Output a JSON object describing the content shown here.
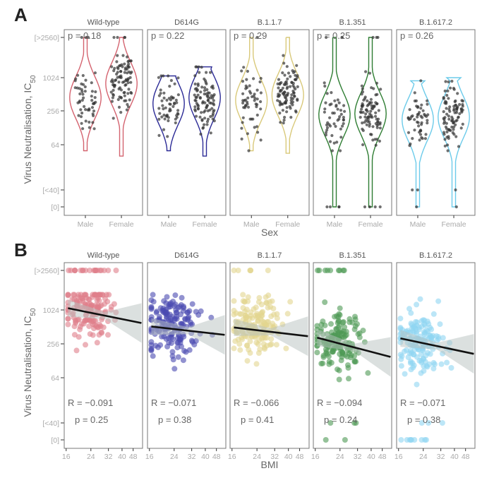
{
  "figure": {
    "panel_labels": [
      "A",
      "B"
    ]
  },
  "chart_data": [
    {
      "type": "violin",
      "panel": "A",
      "facets": [
        "Wild-type",
        "D614G",
        "B.1.1.7",
        "B.1.351",
        "B.1.617.2"
      ],
      "colors": [
        "#d4636f",
        "#2b2a96",
        "#d9c97a",
        "#2e7d32",
        "#6ccbea"
      ],
      "xlabel": "Sex",
      "ylabel": "Virus  Neutralisation, IC50",
      "ylabel_parts": {
        "main": "Virus  Neutralisation,  IC",
        "sub": "50"
      },
      "categories": [
        "Male",
        "Female"
      ],
      "yticks": [
        "[>2560]",
        "1024",
        "256",
        "64",
        "[<40]",
        "[0]"
      ],
      "ytick_values": [
        2560,
        1024,
        256,
        64,
        40,
        0
      ],
      "scale": "log2",
      "p_values": [
        "p = 0.18",
        "p = 0.22",
        "p = 0.29",
        "p = 0.25",
        "p = 0.26"
      ],
      "series": [
        {
          "name": "Wild-type",
          "median": {
            "Male": 450,
            "Female": 800
          },
          "range": {
            "Male": [
              50,
              2560
            ],
            "Female": [
              40,
              2560
            ]
          }
        },
        {
          "name": "D614G",
          "median": {
            "Male": 350,
            "Female": 450
          },
          "range": {
            "Male": [
              50,
              1100
            ],
            "Female": [
              40,
              1600
            ]
          }
        },
        {
          "name": "B.1.1.7",
          "median": {
            "Male": 400,
            "Female": 500
          },
          "range": {
            "Male": [
              50,
              2560
            ],
            "Female": [
              45,
              2560
            ]
          }
        },
        {
          "name": "B.1.351",
          "median": {
            "Male": 220,
            "Female": 230
          },
          "range": {
            "Male": [
              0,
              2560
            ],
            "Female": [
              0,
              2560
            ]
          }
        },
        {
          "name": "B.1.617.2",
          "median": {
            "Male": 180,
            "Female": 200
          },
          "range": {
            "Male": [
              0,
              900
            ],
            "Female": [
              0,
              1024
            ]
          }
        }
      ]
    },
    {
      "type": "scatter",
      "panel": "B",
      "facets": [
        "Wild-type",
        "D614G",
        "B.1.1.7",
        "B.1.351",
        "B.1.617.2"
      ],
      "colors": [
        "#e07f8a",
        "#4a49b0",
        "#e3d68f",
        "#4e9a55",
        "#8fd6f2"
      ],
      "xlabel": "BMI",
      "ylabel": "Virus  Neutralisation, IC50",
      "xticks": [
        "16",
        "24",
        "32",
        "40",
        "48"
      ],
      "xtick_values": [
        16,
        24,
        32,
        40,
        48
      ],
      "xscale": "log",
      "yticks": [
        "[>2560]",
        "1024",
        "256",
        "64",
        "[<40]",
        "[0]"
      ],
      "ytick_values": [
        2560,
        1024,
        256,
        64,
        40,
        0
      ],
      "stats": [
        {
          "R": "R = −0.091",
          "p": "p = 0.25"
        },
        {
          "R": "R = −0.071",
          "p": "p = 0.38"
        },
        {
          "R": "R = −0.066",
          "p": "p = 0.41"
        },
        {
          "R": "R = −0.094",
          "p": "p = 0.24"
        },
        {
          "R": "R = −0.071",
          "p": "p = 0.38"
        }
      ],
      "regression": [
        {
          "facet": "Wild-type",
          "y_at_16": 1100,
          "y_at_55": 600
        },
        {
          "facet": "D614G",
          "y_at_16": 520,
          "y_at_55": 370
        },
        {
          "facet": "B.1.1.7",
          "y_at_16": 500,
          "y_at_55": 350
        },
        {
          "facet": "B.1.351",
          "y_at_16": 330,
          "y_at_55": 150
        },
        {
          "facet": "B.1.617.2",
          "y_at_16": 320,
          "y_at_55": 170
        }
      ]
    }
  ]
}
